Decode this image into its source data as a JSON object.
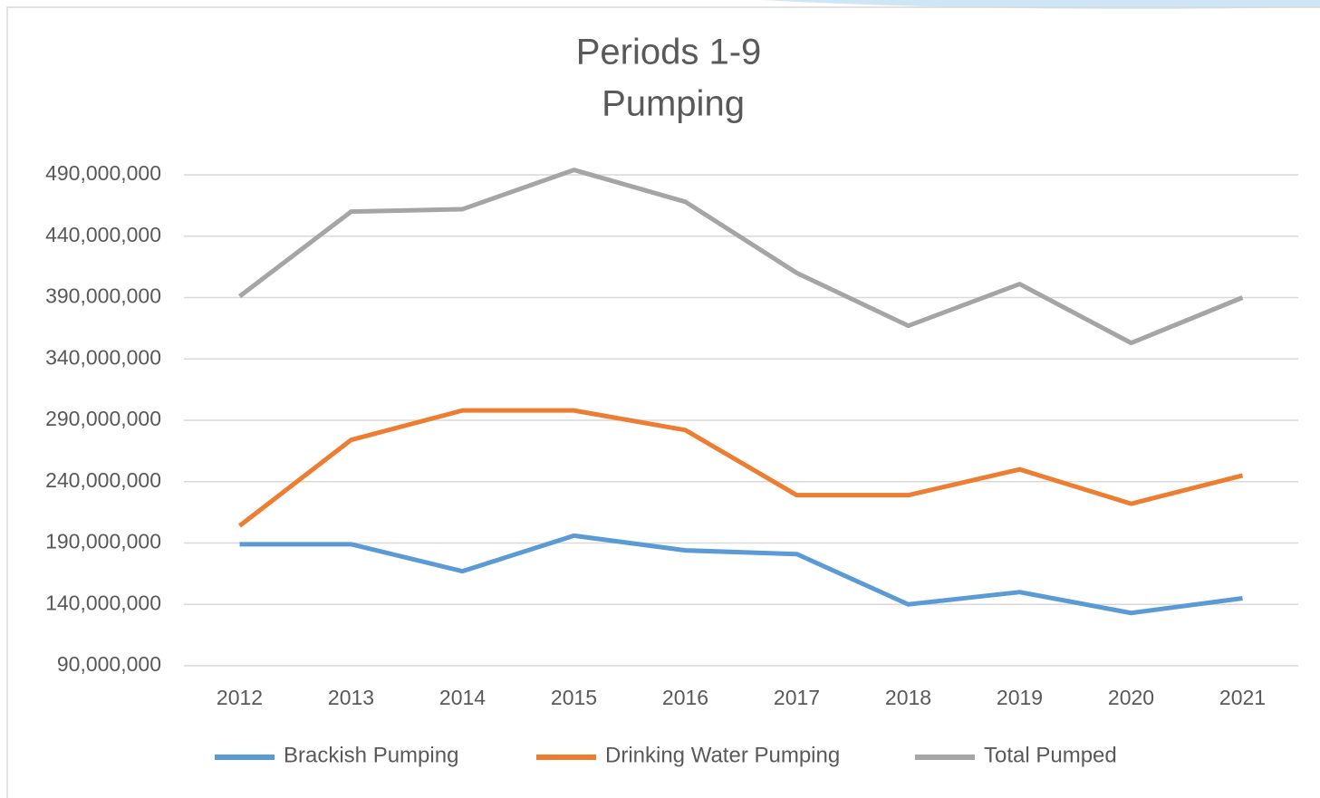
{
  "chart_data": {
    "type": "line",
    "title": [
      "Periods 1-9",
      "Pumping"
    ],
    "categories": [
      "2012",
      "2013",
      "2014",
      "2015",
      "2016",
      "2017",
      "2018",
      "2019",
      "2020",
      "2021"
    ],
    "series": [
      {
        "name": "Brackish Pumping",
        "color": "#5b9bd5",
        "values": [
          189000000,
          189000000,
          167000000,
          196000000,
          184000000,
          181000000,
          140000000,
          150000000,
          133000000,
          145000000
        ]
      },
      {
        "name": "Drinking Water Pumping",
        "color": "#ed7d31",
        "values": [
          204000000,
          274000000,
          298000000,
          298000000,
          282000000,
          229000000,
          229000000,
          250000000,
          222000000,
          245000000
        ]
      },
      {
        "name": "Total Pumped",
        "color": "#a5a5a5",
        "values": [
          391000000,
          460000000,
          462000000,
          494000000,
          468000000,
          410000000,
          367000000,
          401000000,
          353000000,
          390000000
        ]
      }
    ],
    "ylim": [
      90000000,
      490000000
    ],
    "yticks": [
      {
        "value": 90000000,
        "label": "90,000,000"
      },
      {
        "value": 140000000,
        "label": "140,000,000"
      },
      {
        "value": 190000000,
        "label": "190,000,000"
      },
      {
        "value": 240000000,
        "label": "240,000,000"
      },
      {
        "value": 290000000,
        "label": "290,000,000"
      },
      {
        "value": 340000000,
        "label": "340,000,000"
      },
      {
        "value": 390000000,
        "label": "390,000,000"
      },
      {
        "value": 440000000,
        "label": "440,000,000"
      },
      {
        "value": 490000000,
        "label": "490,000,000"
      }
    ],
    "grid": true,
    "legend": "bottom"
  }
}
